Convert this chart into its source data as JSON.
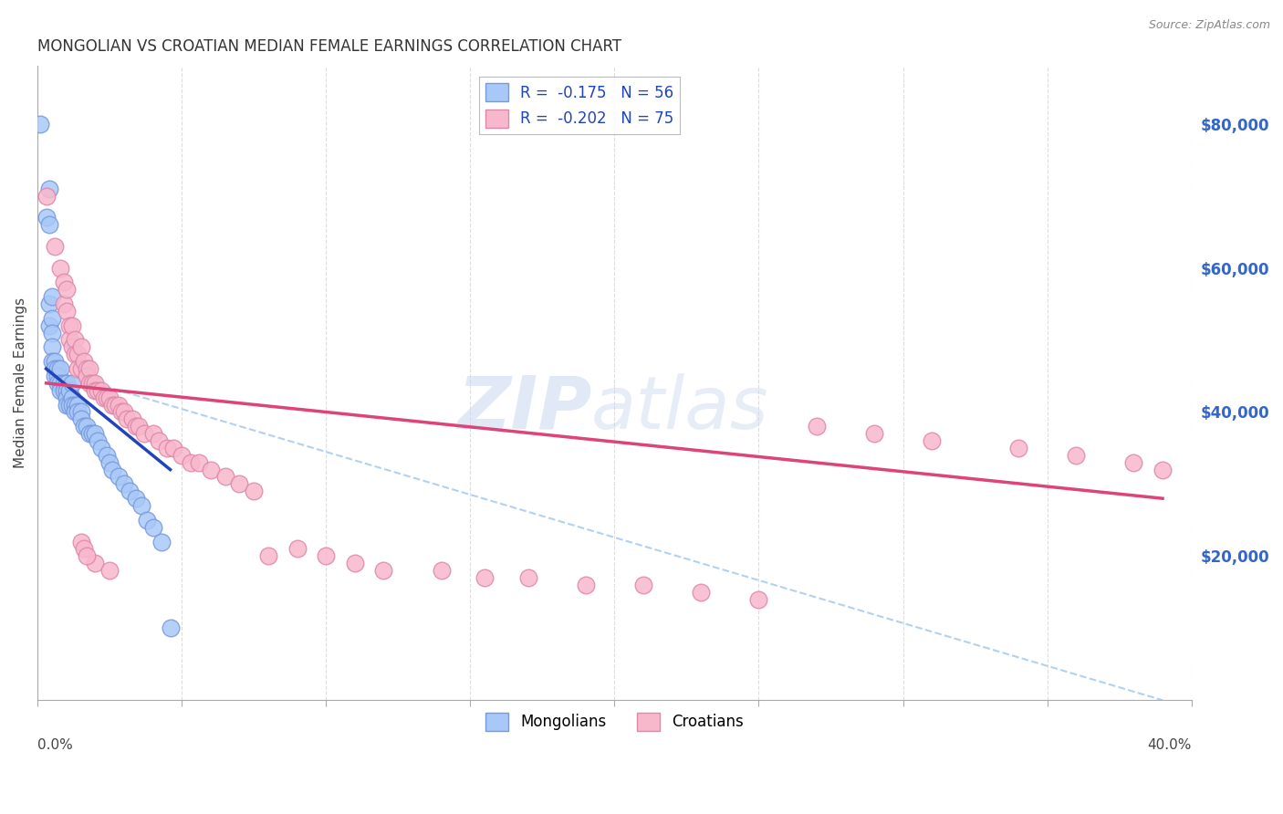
{
  "title": "MONGOLIAN VS CROATIAN MEDIAN FEMALE EARNINGS CORRELATION CHART",
  "source": "Source: ZipAtlas.com",
  "ylabel": "Median Female Earnings",
  "right_ytick_labels": [
    "$20,000",
    "$40,000",
    "$60,000",
    "$80,000"
  ],
  "right_ytick_values": [
    20000,
    40000,
    60000,
    80000
  ],
  "legend_mongolians": "Mongolians",
  "legend_croatians": "Croatians",
  "mongolian_color": "#a8c8f8",
  "croatian_color": "#f8b8cc",
  "mongolian_edge": "#7799dd",
  "croatian_edge": "#dd88aa",
  "blue_line_color": "#2244bb",
  "pink_line_color": "#dd4477",
  "dashed_line_color": "#aaccee",
  "watermark_zip": "ZIP",
  "watermark_atlas": "atlas",
  "watermark_color_zip": "#c8d8ee",
  "watermark_color_atlas": "#c8d8ee",
  "background_color": "#ffffff",
  "grid_color": "#dddddd",
  "xlim": [
    0.0,
    0.4
  ],
  "ylim": [
    0,
    88000
  ],
  "mongolian_x": [
    0.001,
    0.003,
    0.004,
    0.004,
    0.004,
    0.004,
    0.005,
    0.005,
    0.005,
    0.005,
    0.005,
    0.006,
    0.006,
    0.006,
    0.007,
    0.007,
    0.007,
    0.008,
    0.008,
    0.008,
    0.009,
    0.009,
    0.01,
    0.01,
    0.01,
    0.01,
    0.011,
    0.011,
    0.012,
    0.012,
    0.012,
    0.013,
    0.013,
    0.014,
    0.014,
    0.015,
    0.015,
    0.016,
    0.017,
    0.018,
    0.019,
    0.02,
    0.021,
    0.022,
    0.024,
    0.025,
    0.026,
    0.028,
    0.03,
    0.032,
    0.034,
    0.036,
    0.038,
    0.04,
    0.043,
    0.046
  ],
  "mongolian_y": [
    80000,
    67000,
    71000,
    66000,
    55000,
    52000,
    56000,
    53000,
    51000,
    49000,
    47000,
    47000,
    46000,
    45000,
    46000,
    45000,
    44000,
    46000,
    44000,
    43000,
    44000,
    43000,
    44000,
    43000,
    42000,
    41000,
    43000,
    41000,
    44000,
    42000,
    41000,
    41000,
    40000,
    41000,
    40000,
    40000,
    39000,
    38000,
    38000,
    37000,
    37000,
    37000,
    36000,
    35000,
    34000,
    33000,
    32000,
    31000,
    30000,
    29000,
    28000,
    27000,
    25000,
    24000,
    22000,
    10000
  ],
  "croatian_x": [
    0.003,
    0.006,
    0.008,
    0.009,
    0.009,
    0.01,
    0.01,
    0.011,
    0.011,
    0.012,
    0.012,
    0.013,
    0.013,
    0.014,
    0.014,
    0.015,
    0.015,
    0.016,
    0.017,
    0.017,
    0.018,
    0.018,
    0.019,
    0.02,
    0.02,
    0.021,
    0.022,
    0.023,
    0.024,
    0.025,
    0.026,
    0.027,
    0.028,
    0.029,
    0.03,
    0.031,
    0.033,
    0.034,
    0.035,
    0.037,
    0.04,
    0.042,
    0.045,
    0.047,
    0.05,
    0.053,
    0.056,
    0.06,
    0.065,
    0.07,
    0.075,
    0.08,
    0.09,
    0.1,
    0.11,
    0.12,
    0.14,
    0.155,
    0.17,
    0.19,
    0.21,
    0.23,
    0.25,
    0.27,
    0.29,
    0.31,
    0.34,
    0.36,
    0.38,
    0.39,
    0.02,
    0.025,
    0.015,
    0.016,
    0.017
  ],
  "croatian_y": [
    70000,
    63000,
    60000,
    58000,
    55000,
    57000,
    54000,
    52000,
    50000,
    52000,
    49000,
    50000,
    48000,
    48000,
    46000,
    49000,
    46000,
    47000,
    46000,
    45000,
    46000,
    44000,
    44000,
    44000,
    43000,
    43000,
    43000,
    42000,
    42000,
    42000,
    41000,
    41000,
    41000,
    40000,
    40000,
    39000,
    39000,
    38000,
    38000,
    37000,
    37000,
    36000,
    35000,
    35000,
    34000,
    33000,
    33000,
    32000,
    31000,
    30000,
    29000,
    20000,
    21000,
    20000,
    19000,
    18000,
    18000,
    17000,
    17000,
    16000,
    16000,
    15000,
    14000,
    38000,
    37000,
    36000,
    35000,
    34000,
    33000,
    32000,
    19000,
    18000,
    22000,
    21000,
    20000
  ],
  "blue_line_x": [
    0.003,
    0.046
  ],
  "blue_line_y": [
    46000,
    32000
  ],
  "pink_line_x": [
    0.003,
    0.39
  ],
  "pink_line_y": [
    44000,
    28000
  ],
  "dashed_line_x": [
    0.003,
    0.39
  ],
  "dashed_line_y": [
    46000,
    0
  ]
}
